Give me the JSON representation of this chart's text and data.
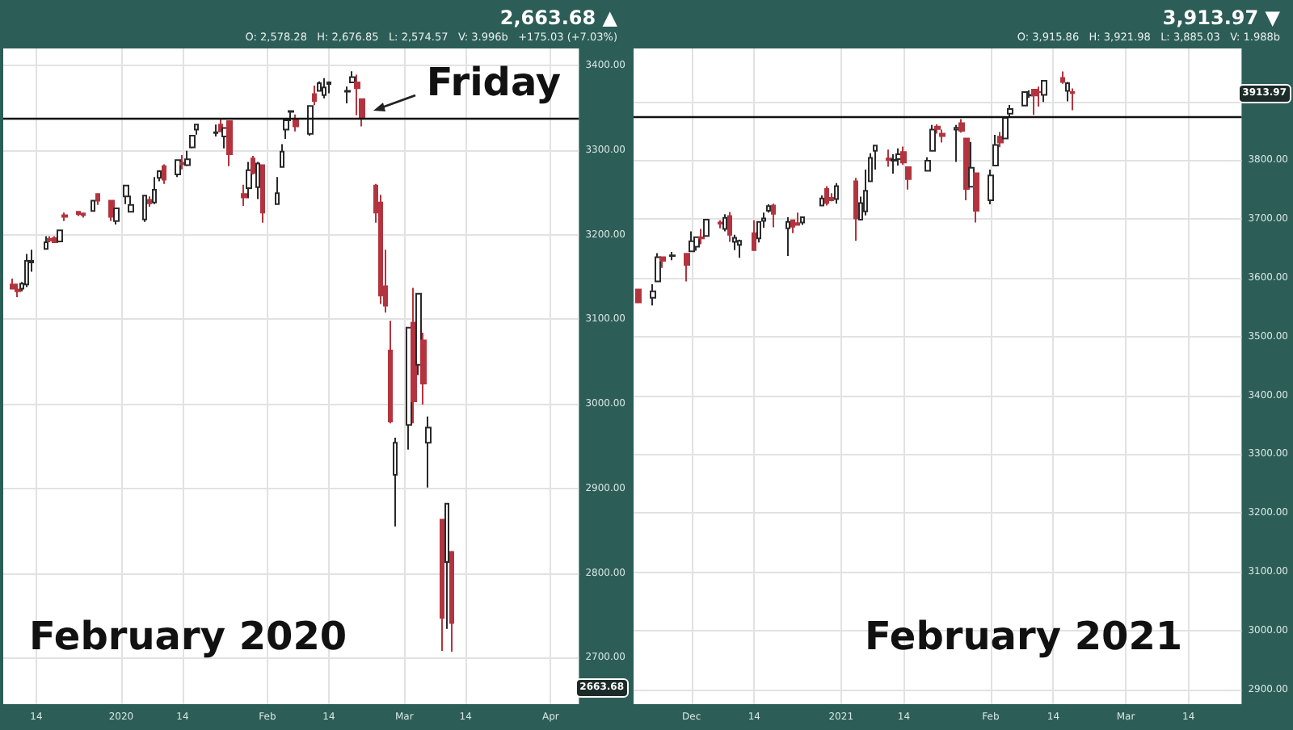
{
  "chart_data": [
    {
      "type": "candlestick",
      "x": [
        "2019-12-09",
        "2019-12-10",
        "2019-12-11",
        "2019-12-12",
        "2019-12-13",
        "2019-12-16",
        "2019-12-17",
        "2019-12-18",
        "2019-12-19",
        "2019-12-20",
        "2019-12-23",
        "2019-12-24",
        "2019-12-26",
        "2019-12-27",
        "2019-12-30",
        "2019-12-31",
        "2020-01-02",
        "2020-01-03",
        "2020-01-06",
        "2020-01-07",
        "2020-01-08",
        "2020-01-09",
        "2020-01-10",
        "2020-01-13",
        "2020-01-14",
        "2020-01-15",
        "2020-01-16",
        "2020-01-17",
        "2020-01-21",
        "2020-01-22",
        "2020-01-23",
        "2020-01-24",
        "2020-01-27",
        "2020-01-28",
        "2020-01-29",
        "2020-01-30",
        "2020-01-31",
        "2020-02-03",
        "2020-02-04",
        "2020-02-05",
        "2020-02-06",
        "2020-02-07",
        "2020-02-10",
        "2020-02-11",
        "2020-02-12",
        "2020-02-13",
        "2020-02-14",
        "2020-02-18",
        "2020-02-19",
        "2020-02-20",
        "2020-02-21",
        "2020-02-24",
        "2020-02-25",
        "2020-02-26",
        "2020-02-27",
        "2020-02-28",
        "2020-03-02",
        "2020-03-03",
        "2020-03-04",
        "2020-03-05",
        "2020-03-06",
        "2020-03-09",
        "2020-03-10",
        "2020-03-11"
      ],
      "series": [
        {
          "colors": [
            "#b3343f",
            "#b3343f",
            "#ffffff",
            "#ffffff",
            "#ffffff",
            "#ffffff",
            "#b3343f",
            "#b3343f",
            "#ffffff",
            "#b3343f",
            "#b3343f",
            "#b3343f",
            "#ffffff",
            "#b3343f",
            "#b3343f",
            "#ffffff",
            "#ffffff",
            "#ffffff",
            "#ffffff",
            "#b3343f",
            "#ffffff",
            "#ffffff",
            "#b3343f",
            "#ffffff",
            "#b3343f",
            "#ffffff",
            "#ffffff",
            "#ffffff",
            "#ffffff",
            "#b3343f",
            "#ffffff",
            "#b3343f",
            "#b3343f",
            "#ffffff",
            "#b3343f",
            "#ffffff",
            "#b3343f",
            "#ffffff",
            "#ffffff",
            "#ffffff",
            "#ffffff",
            "#b3343f",
            "#ffffff",
            "#b3343f",
            "#ffffff",
            "#ffffff",
            "#ffffff",
            "#ffffff",
            "#ffffff",
            "#b3343f",
            "#b3343f",
            "#b3343f",
            "#b3343f",
            "#b3343f",
            "#b3343f",
            "#ffffff",
            "#ffffff",
            "#b3343f",
            "#ffffff",
            "#b3343f",
            "#ffffff",
            "#b3343f",
            "#ffffff",
            "#b3343f"
          ],
          "ohlc": [
            [
              3141,
              3148,
              3135,
              3136
            ],
            [
              3135,
              3142,
              3126,
              3133
            ],
            [
              3136,
              3144,
              3133,
              3142
            ],
            [
              3141,
              3177,
              3138,
              3169
            ],
            [
              3167,
              3182,
              3156,
              3169
            ],
            [
              3183,
              3198,
              3183,
              3191
            ],
            [
              3195,
              3198,
              3191,
              3193
            ],
            [
              3196,
              3198,
              3191,
              3191
            ],
            [
              3192,
              3206,
              3192,
              3205
            ],
            [
              3223,
              3226,
              3216,
              3221
            ],
            [
              3227,
              3227,
              3222,
              3224
            ],
            [
              3225,
              3226,
              3220,
              3223
            ],
            [
              3228,
              3240,
              3227,
              3240
            ],
            [
              3248,
              3248,
              3235,
              3240
            ],
            [
              3240,
              3240,
              3216,
              3221
            ],
            [
              3216,
              3232,
              3212,
              3231
            ],
            [
              3245,
              3258,
              3236,
              3258
            ],
            [
              3227,
              3246,
              3226,
              3235
            ],
            [
              3218,
              3247,
              3215,
              3246
            ],
            [
              3241,
              3245,
              3233,
              3237
            ],
            [
              3238,
              3268,
              3236,
              3253
            ],
            [
              3267,
              3276,
              3263,
              3275
            ],
            [
              3281,
              3283,
              3260,
              3265
            ],
            [
              3271,
              3288,
              3268,
              3288
            ],
            [
              3285,
              3294,
              3277,
              3283
            ],
            [
              3282,
              3299,
              3281,
              3289
            ],
            [
              3303,
              3317,
              3302,
              3317
            ],
            [
              3324,
              3330,
              3318,
              3330
            ],
            [
              3320,
              3330,
              3316,
              3321
            ],
            [
              3330,
              3337,
              3321,
              3322
            ],
            [
              3316,
              3326,
              3302,
              3326
            ],
            [
              3334,
              3334,
              3281,
              3295
            ],
            [
              3248,
              3259,
              3234,
              3244
            ],
            [
              3255,
              3286,
              3243,
              3276
            ],
            [
              3290,
              3293,
              3271,
              3273
            ],
            [
              3256,
              3286,
              3242,
              3284
            ],
            [
              3282,
              3283,
              3214,
              3226
            ],
            [
              3236,
              3268,
              3236,
              3249
            ],
            [
              3280,
              3307,
              3280,
              3298
            ],
            [
              3324,
              3338,
              3313,
              3335
            ],
            [
              3345,
              3347,
              3334,
              3346
            ],
            [
              3335,
              3342,
              3322,
              3328
            ],
            [
              3319,
              3352,
              3317,
              3352
            ],
            [
              3366,
              3376,
              3353,
              3358
            ],
            [
              3370,
              3381,
              3369,
              3379
            ],
            [
              3365,
              3385,
              3361,
              3374
            ],
            [
              3378,
              3381,
              3367,
              3380
            ],
            [
              3369,
              3375,
              3355,
              3370
            ],
            [
              3380,
              3393,
              3379,
              3386
            ],
            [
              3380,
              3389,
              3341,
              3373
            ],
            [
              3360,
              3360,
              3328,
              3338
            ],
            [
              3258,
              3260,
              3214,
              3226
            ],
            [
              3238,
              3247,
              3118,
              3128
            ],
            [
              3139,
              3182,
              3108,
              3116
            ],
            [
              3063,
              3098,
              2977,
              2979
            ],
            [
              2916,
              2960,
              2855,
              2954
            ],
            [
              2975,
              3091,
              2946,
              3090
            ],
            [
              3096,
              3137,
              2977,
              3003
            ],
            [
              3046,
              3130,
              3034,
              3130
            ],
            [
              3075,
              3084,
              2999,
              3024
            ],
            [
              2954,
              2985,
              2901,
              2972
            ],
            [
              2863,
              2863,
              2708,
              2747
            ],
            [
              2813,
              2883,
              2734,
              2882
            ],
            [
              2825,
              2826,
              2707,
              2741
            ]
          ]
        }
      ],
      "xlim": [
        "2019-12-07",
        "2020-04-07"
      ],
      "xticks": [
        {
          "value": "2019-12-14",
          "label": "14"
        },
        {
          "value": "2020-01-01",
          "label": "2020"
        },
        {
          "value": "2020-01-14",
          "label": "14"
        },
        {
          "value": "2020-02-01",
          "label": "Feb"
        },
        {
          "value": "2020-02-14",
          "label": "14"
        },
        {
          "value": "2020-03-01",
          "label": "Mar"
        },
        {
          "value": "2020-03-14",
          "label": "14"
        },
        {
          "value": "2020-04-01",
          "label": "Apr"
        }
      ],
      "ylim": [
        2645,
        3420
      ],
      "yticks": [
        {
          "value": 2700,
          "label": "2700.00"
        },
        {
          "value": 2800,
          "label": "2800.00"
        },
        {
          "value": 2900,
          "label": "2900.00"
        },
        {
          "value": 3000,
          "label": "3000.00"
        },
        {
          "value": 3100,
          "label": "3100.00"
        },
        {
          "value": 3200,
          "label": "3200.00"
        },
        {
          "value": 3300,
          "label": "3300.00"
        },
        {
          "value": 3400,
          "label": "3400.00"
        }
      ],
      "grid": true,
      "ref_lines": [
        {
          "axis": "y",
          "value": 3338,
          "color": "#111111"
        }
      ],
      "annotations": [
        "2,663.68 ▲",
        "O: 2,578.28   H: 2,676.85   L: 2,574.57   V: 3.996b   +175.03 (+7.03%)",
        {
          "text": "2663.68",
          "y": 2663.68
        },
        "February 2020",
        {
          "text": "Friday",
          "x": "2020-02-21",
          "y": 3345
        }
      ]
    },
    {
      "type": "candlestick",
      "x": [
        "2020-11-20",
        "2020-11-23",
        "2020-11-24",
        "2020-11-25",
        "2020-11-27",
        "2020-11-30",
        "2020-12-01",
        "2020-12-02",
        "2020-12-03",
        "2020-12-04",
        "2020-12-07",
        "2020-12-08",
        "2020-12-09",
        "2020-12-10",
        "2020-12-11",
        "2020-12-14",
        "2020-12-15",
        "2020-12-16",
        "2020-12-17",
        "2020-12-18",
        "2020-12-21",
        "2020-12-22",
        "2020-12-23",
        "2020-12-24",
        "2020-12-28",
        "2020-12-29",
        "2020-12-30",
        "2020-12-31",
        "2021-01-04",
        "2021-01-05",
        "2021-01-06",
        "2021-01-07",
        "2021-01-08",
        "2021-01-11",
        "2021-01-12",
        "2021-01-13",
        "2021-01-14",
        "2021-01-15",
        "2021-01-19",
        "2021-01-20",
        "2021-01-21",
        "2021-01-22",
        "2021-01-25",
        "2021-01-26",
        "2021-01-27",
        "2021-01-28",
        "2021-01-29",
        "2021-02-01",
        "2021-02-02",
        "2021-02-03",
        "2021-02-04",
        "2021-02-05",
        "2021-02-08",
        "2021-02-09",
        "2021-02-10",
        "2021-02-11",
        "2021-02-12",
        "2021-02-16",
        "2021-02-17",
        "2021-02-18"
      ],
      "series": [
        {
          "colors": [
            "#b3343f",
            "#ffffff",
            "#ffffff",
            "#b3343f",
            "#ffffff",
            "#b3343f",
            "#ffffff",
            "#ffffff",
            "#b3343f",
            "#ffffff",
            "#b3343f",
            "#ffffff",
            "#b3343f",
            "#ffffff",
            "#ffffff",
            "#b3343f",
            "#ffffff",
            "#ffffff",
            "#ffffff",
            "#b3343f",
            "#ffffff",
            "#b3343f",
            "#b3343f",
            "#ffffff",
            "#ffffff",
            "#b3343f",
            "#b3343f",
            "#ffffff",
            "#b3343f",
            "#ffffff",
            "#ffffff",
            "#ffffff",
            "#ffffff",
            "#b3343f",
            "#ffffff",
            "#ffffff",
            "#b3343f",
            "#b3343f",
            "#ffffff",
            "#ffffff",
            "#b3343f",
            "#b3343f",
            "#ffffff",
            "#b3343f",
            "#b3343f",
            "#ffffff",
            "#b3343f",
            "#ffffff",
            "#ffffff",
            "#b3343f",
            "#ffffff",
            "#ffffff",
            "#ffffff",
            "#ffffff",
            "#b3343f",
            "#b3343f",
            "#ffffff",
            "#b3343f",
            "#ffffff",
            "#b3343f"
          ],
          "ohlc": [
            [
              3580,
              3581,
              3557,
              3558
            ],
            [
              3566,
              3589,
              3553,
              3577
            ],
            [
              3594,
              3642,
              3594,
              3635
            ],
            [
              3635,
              3636,
              3617,
              3629
            ],
            [
              3637,
              3644,
              3630,
              3638
            ],
            [
              3641,
              3641,
              3594,
              3622
            ],
            [
              3645,
              3679,
              3645,
              3662
            ],
            [
              3653,
              3670,
              3646,
              3669
            ],
            [
              3669,
              3683,
              3657,
              3667
            ],
            [
              3671,
              3699,
              3671,
              3699
            ],
            [
              3694,
              3698,
              3684,
              3692
            ],
            [
              3683,
              3708,
              3679,
              3702
            ],
            [
              3705,
              3712,
              3661,
              3673
            ],
            [
              3661,
              3673,
              3647,
              3668
            ],
            [
              3656,
              3665,
              3634,
              3663
            ],
            [
              3676,
              3698,
              3646,
              3647
            ],
            [
              3667,
              3695,
              3660,
              3695
            ],
            [
              3697,
              3711,
              3685,
              3701
            ],
            [
              3714,
              3725,
              3711,
              3722
            ],
            [
              3723,
              3726,
              3686,
              3709
            ],
            [
              3684,
              3703,
              3637,
              3695
            ],
            [
              3698,
              3698,
              3676,
              3687
            ],
            [
              3693,
              3711,
              3690,
              3690
            ],
            [
              3694,
              3703,
              3690,
              3703
            ],
            [
              3723,
              3740,
              3723,
              3735
            ],
            [
              3751,
              3756,
              3723,
              3727
            ],
            [
              3736,
              3744,
              3730,
              3732
            ],
            [
              3734,
              3761,
              3726,
              3756
            ],
            [
              3764,
              3770,
              3663,
              3701
            ],
            [
              3699,
              3738,
              3698,
              3727
            ],
            [
              3713,
              3784,
              3706,
              3748
            ],
            [
              3764,
              3812,
              3764,
              3804
            ],
            [
              3816,
              3826,
              3784,
              3825
            ],
            [
              3803,
              3818,
              3789,
              3800
            ],
            [
              3799,
              3810,
              3777,
              3801
            ],
            [
              3802,
              3820,
              3791,
              3810
            ],
            [
              3814,
              3823,
              3792,
              3796
            ],
            [
              3788,
              3789,
              3750,
              3768
            ],
            [
              3782,
              3805,
              3782,
              3799
            ],
            [
              3816,
              3860,
              3816,
              3852
            ],
            [
              3857,
              3861,
              3845,
              3853
            ],
            [
              3845,
              3852,
              3830,
              3841
            ],
            [
              3852,
              3860,
              3797,
              3855
            ],
            [
              3863,
              3870,
              3847,
              3850
            ],
            [
              3837,
              3837,
              3732,
              3751
            ],
            [
              3755,
              3831,
              3755,
              3787
            ],
            [
              3778,
              3778,
              3694,
              3714
            ],
            [
              3732,
              3784,
              3725,
              3774
            ],
            [
              3791,
              3843,
              3791,
              3826
            ],
            [
              3840,
              3848,
              3822,
              3830
            ],
            [
              3837,
              3872,
              3836,
              3872
            ],
            [
              3879,
              3894,
              3874,
              3887
            ],
            [
              3893,
              3916,
              3893,
              3916
            ],
            [
              3910,
              3919,
              3906,
              3911
            ],
            [
              3920,
              3920,
              3877,
              3910
            ],
            [
              3916,
              3925,
              3891,
              3916
            ],
            [
              3911,
              3935,
              3899,
              3935
            ],
            [
              3940,
              3951,
              3930,
              3933
            ],
            [
              3918,
              3933,
              3900,
              3931
            ],
            [
              3916,
              3922,
              3885,
              3914
            ]
          ]
        }
      ],
      "xlim": [
        "2020-11-19",
        "2021-03-25"
      ],
      "xticks": [
        {
          "value": "2020-12-01",
          "label": "Dec"
        },
        {
          "value": "2020-12-14",
          "label": "14"
        },
        {
          "value": "2021-01-01",
          "label": "2021"
        },
        {
          "value": "2021-01-14",
          "label": "14"
        },
        {
          "value": "2021-02-01",
          "label": "Feb"
        },
        {
          "value": "2021-02-14",
          "label": "14"
        },
        {
          "value": "2021-03-01",
          "label": "Mar"
        },
        {
          "value": "2021-03-14",
          "label": "14"
        }
      ],
      "ylim": [
        2875,
        3990
      ],
      "yticks": [
        {
          "value": 2900,
          "label": "2900.00"
        },
        {
          "value": 3000,
          "label": "3000.00"
        },
        {
          "value": 3100,
          "label": "3100.00"
        },
        {
          "value": 3200,
          "label": "3200.00"
        },
        {
          "value": 3300,
          "label": "3300.00"
        },
        {
          "value": 3400,
          "label": "3400.00"
        },
        {
          "value": 3500,
          "label": "3500.00"
        },
        {
          "value": 3600,
          "label": "3600.00"
        },
        {
          "value": 3700,
          "label": "3700.00"
        },
        {
          "value": 3800,
          "label": "3800.00"
        },
        {
          "value": 3900,
          "label": null
        }
      ],
      "grid": true,
      "ref_lines": [
        {
          "axis": "y",
          "value": 3873,
          "color": "#111111"
        }
      ],
      "annotations": [
        "3,913.97 ▼",
        "O: 3,915.86   H: 3,921.98   L: 3,885.03   V: 1.988b",
        {
          "text": "3913.97",
          "y": 3913.97
        },
        "February 2021"
      ]
    }
  ]
}
